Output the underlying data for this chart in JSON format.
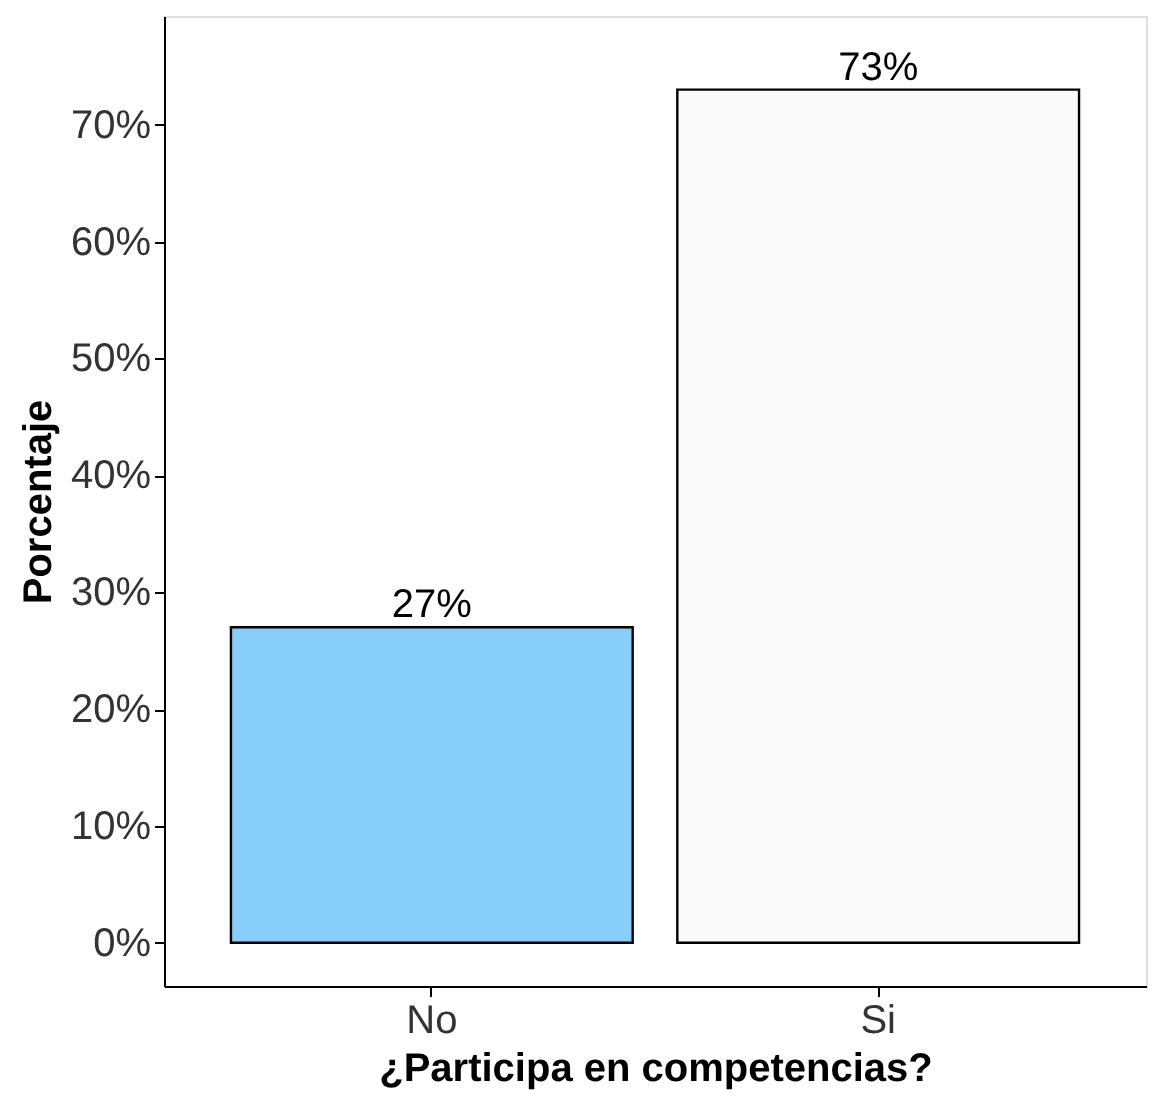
{
  "chart_data": {
    "type": "bar",
    "xlabel": "¿Participa en competencias?",
    "ylabel": "Porcentaje",
    "categories": [
      "No",
      "Si"
    ],
    "values": [
      27,
      73
    ],
    "colors": [
      "#87cefa",
      "#fafafa"
    ],
    "value_labels": [
      "27%",
      "73%"
    ],
    "ylim": [
      -3.7,
      79.3
    ],
    "yticks": [
      {
        "value": 0,
        "label": "0%"
      },
      {
        "value": 10,
        "label": "10%"
      },
      {
        "value": 20,
        "label": "20%"
      },
      {
        "value": 30,
        "label": "30%"
      },
      {
        "value": 40,
        "label": "40%"
      },
      {
        "value": 50,
        "label": "50%"
      },
      {
        "value": 60,
        "label": "60%"
      },
      {
        "value": 70,
        "label": "70%"
      }
    ]
  }
}
